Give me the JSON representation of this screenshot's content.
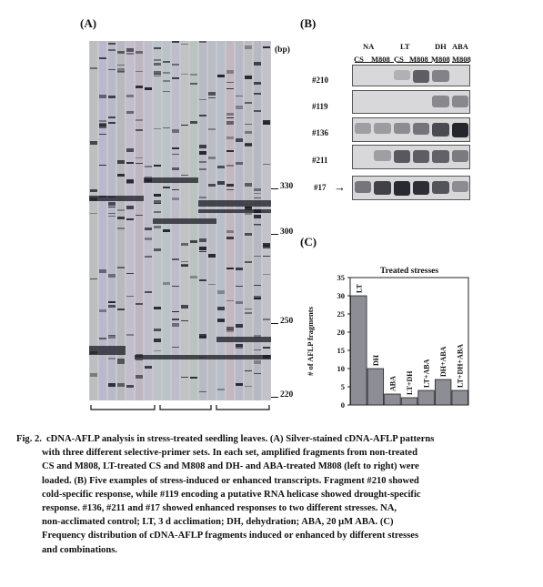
{
  "panelA": {
    "label": "(A)",
    "unit": "(bp)",
    "markers": [
      "330",
      "300",
      "250",
      "220"
    ]
  },
  "panelB": {
    "label": "(B)",
    "groups": [
      "NA",
      "LT",
      "DH",
      "ABA"
    ],
    "lanes": [
      "CS",
      "M808",
      "CS",
      "M808",
      "M808",
      "M808"
    ],
    "fragments": [
      "#210",
      "#119",
      "#136",
      "#211",
      "#17"
    ],
    "arrow": "→"
  },
  "panelC": {
    "label": "(C)"
  },
  "chart_data": {
    "type": "bar",
    "title": "Treated stresses",
    "ylabel": "# of AFLP fragments",
    "xlabel": "",
    "categories": [
      "LT",
      "DH",
      "ABA",
      "LT+DH",
      "LT+ABA",
      "DH+ABA",
      "LT+DH+ABA"
    ],
    "values": [
      30,
      10,
      3,
      2,
      4,
      7,
      4
    ],
    "ylim": [
      0,
      35
    ],
    "yticks": [
      "0",
      "5",
      "10",
      "15",
      "20",
      "25",
      "30",
      "35"
    ],
    "colors": {
      "bar": "#8d8d96",
      "edge": "#222222"
    }
  },
  "caption": {
    "fig_label": "Fig. 2.",
    "lines": [
      "cDNA-AFLP analysis in stress-treated seedling leaves.  (A) Silver-stained cDNA-AFLP patterns",
      "with three different selective-primer sets.  In each set, amplified fragments from non-treated",
      "CS and M808, LT-treated CS and M808 and DH- and ABA-treated M808 (left to right) were",
      "loaded.  (B) Five examples of stress-induced or enhanced transcripts.  Fragment #210 showed",
      "cold-specific response, while #119 encoding a putative RNA helicase showed drought-specific",
      "response.  #136, #211 and #17 showed enhanced responses to two different stresses.  NA,",
      "non-acclimated control; LT, 3 d acclimation; DH, dehydration; ABA, 20 μM ABA.  (C)",
      "Frequency distribution of cDNA-AFLP fragments induced or enhanced by different stresses",
      "and combinations."
    ]
  }
}
